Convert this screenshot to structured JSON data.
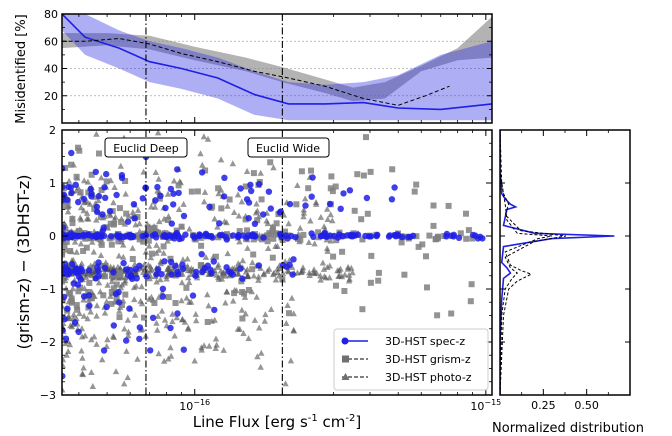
{
  "chart_data": [
    {
      "type": "area",
      "panel": "misidentification",
      "ylabel": "Misidentified [%]",
      "ylim": [
        0,
        80
      ],
      "yticks": [
        "20",
        "40",
        "60",
        "80"
      ],
      "xscale": "log",
      "xlim": [
        3.5e-17,
        1.05e-15
      ],
      "grid": "horizontal dotted",
      "series": [
        {
          "name": "3D-HST spec-z",
          "color": "#1f1fe6",
          "x": [
            3.5e-17,
            4.2e-17,
            5.5e-17,
            7e-17,
            9e-17,
            1.2e-16,
            1.6e-16,
            2.1e-16,
            2.8e-16,
            3.8e-16,
            5e-16,
            7e-16,
            1.05e-15
          ],
          "y": [
            80,
            63,
            55,
            45,
            40,
            33,
            21,
            14,
            14,
            15,
            11,
            10,
            14
          ],
          "lower": [
            68,
            50,
            40,
            30,
            25,
            18,
            6,
            2,
            2,
            2,
            2,
            2,
            2
          ],
          "upper": [
            80,
            80,
            68,
            60,
            55,
            48,
            38,
            30,
            28,
            30,
            35,
            50,
            60
          ]
        },
        {
          "name": "3D-HST grism-z",
          "color": "#000000",
          "x": [
            3.5e-17,
            4.2e-17,
            5.5e-17,
            7e-17,
            9e-17,
            1.2e-16,
            1.6e-16,
            2.1e-16,
            2.8e-16,
            3.8e-16,
            5e-16,
            6.2e-16,
            7.5e-16
          ],
          "y": [
            60,
            60,
            62,
            58,
            51,
            45,
            38,
            33,
            27,
            18,
            13,
            20,
            27
          ],
          "lower": [
            56,
            56,
            58,
            52,
            45,
            39,
            32,
            27,
            21,
            12,
            8,
            12,
            18
          ],
          "upper": [
            66,
            66,
            65,
            64,
            57,
            51,
            44,
            39,
            34,
            27,
            35,
            43,
            50
          ]
        }
      ],
      "grey_band": {
        "x": [
          3.5e-17,
          5e-17,
          7e-17,
          1e-16,
          1.5e-16,
          2e-16,
          2.8e-16,
          3.5e-16,
          4.5e-16,
          6e-16,
          8e-16,
          1.05e-15
        ],
        "lower": [
          55,
          57,
          54,
          46,
          38,
          30,
          22,
          16,
          18,
          38,
          46,
          48
        ],
        "upper": [
          66,
          66,
          64,
          56,
          48,
          41,
          32,
          26,
          30,
          42,
          55,
          78
        ]
      }
    },
    {
      "type": "scatter",
      "panel": "main",
      "xlabel": "Line Flux [erg s",
      "xlabel_sup1": "-1",
      "xlabel_mid": " cm",
      "xlabel_sup2": "-2",
      "xlabel_end": "]",
      "ylabel": "(grism-z) − (3DHST-z)",
      "xscale": "log",
      "xlim": [
        3.5e-17,
        1.05e-15
      ],
      "ylim": [
        -3,
        2
      ],
      "xtick_labels": [
        {
          "base": "10",
          "exp": "−16",
          "value": 1e-16
        },
        {
          "base": "10",
          "exp": "−15",
          "value": 1e-15
        }
      ],
      "ytick_labels": [
        "−3",
        "−2",
        "−1",
        "0",
        "1",
        "2"
      ],
      "vlines": [
        {
          "value": 6.8e-17,
          "style": "dash-dot",
          "label": "Euclid Deep"
        },
        {
          "value": 2e-16,
          "style": "dash-dot",
          "label": "Euclid Wide"
        }
      ],
      "legend": {
        "placement": "lower-right",
        "entries": [
          {
            "label": "3D-HST spec-z",
            "marker": "circle",
            "color": "#1f1fe6",
            "line": "solid"
          },
          {
            "label": "3D-HST grism-z",
            "marker": "square",
            "color": "#707070",
            "line": "dashed"
          },
          {
            "label": "3D-HST photo-z",
            "marker": "triangle",
            "color": "#707070",
            "line": "dashed"
          }
        ]
      },
      "point_clusters": [
        {
          "series": "3D-HST spec-z",
          "marker": "circle",
          "color": "#1f1fe6",
          "center_y": 0.0,
          "spread": 0.02,
          "xmax": 1e-15,
          "count": 160
        },
        {
          "series": "3D-HST spec-z",
          "marker": "circle",
          "color": "#1f1fe6",
          "center_y": 0.72,
          "spread": 0.3,
          "xmax": 5e-16,
          "count": 80
        },
        {
          "series": "3D-HST spec-z",
          "marker": "circle",
          "color": "#1f1fe6",
          "center_y": -0.65,
          "spread": 0.1,
          "xmax": 2.5e-16,
          "count": 70
        },
        {
          "series": "3D-HST spec-z",
          "marker": "circle",
          "color": "#1f1fe6",
          "center_y": -1.5,
          "spread": 0.5,
          "xmax": 1.2e-16,
          "count": 35
        },
        {
          "series": "3D-HST grism-z",
          "marker": "square",
          "color": "#808080",
          "center_y": 0.0,
          "spread": 0.05,
          "xmax": 9e-16,
          "count": 120
        },
        {
          "series": "3D-HST grism-z",
          "marker": "square",
          "color": "#808080",
          "center_y": 0.6,
          "spread": 0.5,
          "xmax": 9e-16,
          "count": 90
        },
        {
          "series": "3D-HST grism-z",
          "marker": "square",
          "color": "#808080",
          "center_y": -0.8,
          "spread": 0.45,
          "xmax": 9e-16,
          "count": 90
        },
        {
          "series": "3D-HST photo-z",
          "marker": "triangle",
          "color": "#505050",
          "center_y": -0.67,
          "spread": 0.08,
          "xmax": 3.5e-16,
          "count": 260
        },
        {
          "series": "3D-HST photo-z",
          "marker": "triangle",
          "color": "#505050",
          "center_y": 0.3,
          "spread": 0.6,
          "xmax": 3e-16,
          "count": 240
        },
        {
          "series": "3D-HST photo-z",
          "marker": "triangle",
          "color": "#505050",
          "center_y": -1.5,
          "spread": 0.6,
          "xmax": 2.2e-16,
          "count": 200
        }
      ]
    },
    {
      "type": "line",
      "panel": "histogram",
      "xlabel": "Normalized distribution",
      "xlim": [
        0,
        0.75
      ],
      "ylim": [
        -3,
        2
      ],
      "xticks": [
        "0.25",
        "0.50"
      ],
      "series": [
        {
          "name": "3D-HST spec-z",
          "color": "#1f1fe6",
          "style": "solid",
          "y": [
            -3.0,
            -2.0,
            -1.2,
            -0.8,
            -0.7,
            -0.6,
            -0.5,
            -0.2,
            -0.05,
            0.0,
            0.05,
            0.2,
            0.5,
            0.55,
            0.6,
            0.7,
            0.8,
            1.2,
            2.0
          ],
          "x": [
            0.0,
            0.0,
            0.01,
            0.02,
            0.06,
            0.04,
            0.01,
            0.02,
            0.3,
            0.66,
            0.2,
            0.02,
            0.04,
            0.09,
            0.06,
            0.03,
            0.01,
            0.0,
            0.0
          ]
        },
        {
          "name": "3D-HST grism-z",
          "color": "#000000",
          "style": "dashed",
          "y": [
            -3.0,
            -1.5,
            -1.0,
            -0.8,
            -0.7,
            -0.6,
            -0.4,
            -0.1,
            0.0,
            0.1,
            0.4,
            0.6,
            0.8,
            1.2,
            2.0
          ],
          "x": [
            0.0,
            0.01,
            0.03,
            0.07,
            0.1,
            0.06,
            0.03,
            0.2,
            0.38,
            0.12,
            0.03,
            0.05,
            0.02,
            0.0,
            0.0
          ]
        },
        {
          "name": "3D-HST photo-z",
          "color": "#000000",
          "style": "dashed",
          "y": [
            -3.0,
            -1.5,
            -1.0,
            -0.85,
            -0.72,
            -0.65,
            -0.55,
            -0.3,
            -0.05,
            0.0,
            0.05,
            0.3,
            0.6,
            1.0,
            2.0
          ],
          "x": [
            0.0,
            0.02,
            0.05,
            0.1,
            0.18,
            0.12,
            0.06,
            0.03,
            0.22,
            0.3,
            0.1,
            0.04,
            0.03,
            0.01,
            0.0
          ]
        }
      ]
    }
  ]
}
